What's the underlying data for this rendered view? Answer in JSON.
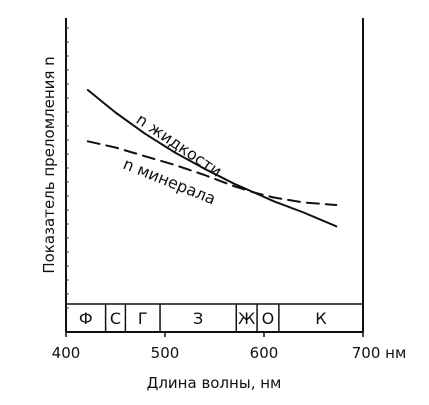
{
  "chart_data": {
    "type": "line",
    "title": "",
    "xlabel": "Длина волны, нм",
    "ylabel": "Показатель преломления n",
    "xlim": [
      400,
      700
    ],
    "x_ticks": [
      {
        "value": 400,
        "label": "400"
      },
      {
        "value": 500,
        "label": "500"
      },
      {
        "value": 600,
        "label": "600"
      },
      {
        "value": 700,
        "label": "700 нм"
      }
    ],
    "y_ticks": "unlabeled",
    "grid": false,
    "series": [
      {
        "name": "n жидкости",
        "style": "solid",
        "x": [
          422,
          450,
          480,
          510,
          540,
          570,
          590,
          610,
          640,
          673
        ],
        "y": [
          0.84,
          0.75,
          0.665,
          0.59,
          0.525,
          0.465,
          0.43,
          0.395,
          0.35,
          0.295
        ]
      },
      {
        "name": "n минерала",
        "style": "dashed",
        "x": [
          422,
          450,
          480,
          510,
          540,
          570,
          590,
          610,
          640,
          673
        ],
        "y": [
          0.635,
          0.61,
          0.575,
          0.54,
          0.5,
          0.455,
          0.43,
          0.41,
          0.39,
          0.38
        ]
      }
    ],
    "color_bands": [
      {
        "label": "Ф",
        "from": 400,
        "to": 440
      },
      {
        "label": "С",
        "from": 440,
        "to": 460
      },
      {
        "label": "Г",
        "from": 460,
        "to": 495
      },
      {
        "label": "З",
        "from": 495,
        "to": 572
      },
      {
        "label": "Ж",
        "from": 572,
        "to": 593
      },
      {
        "label": "О",
        "from": 593,
        "to": 615
      },
      {
        "label": "К",
        "from": 615,
        "to": 700
      }
    ]
  }
}
